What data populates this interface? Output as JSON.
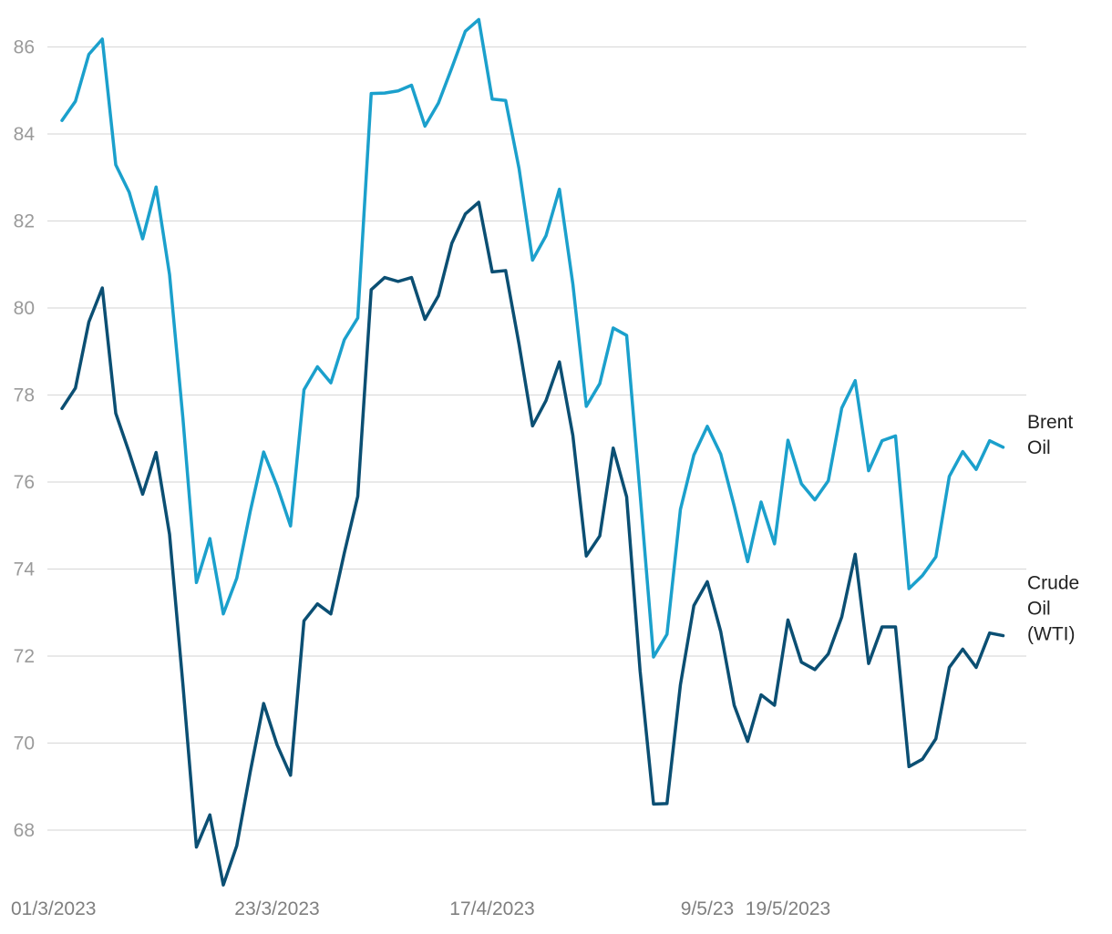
{
  "chart_data": {
    "type": "line",
    "title": "",
    "xlabel": "",
    "ylabel": "",
    "ylim": [
      67,
      87
    ],
    "yticks": [
      68,
      70,
      72,
      74,
      76,
      78,
      80,
      82,
      84,
      86
    ],
    "grid": "horizontal",
    "legend_placement": "right, at line ends",
    "x_tick_labels": [
      "01/3/2023",
      "23/3/2023",
      "17/4/2023",
      "9/5/23",
      "19/5/2023"
    ],
    "x_tick_indices": [
      0,
      16,
      32,
      48,
      54
    ],
    "series": [
      {
        "name": "Brent Oil",
        "label_lines": [
          "Brent",
          "Oil"
        ],
        "color": "#1ba0cc",
        "values": [
          84.31,
          84.75,
          85.83,
          86.18,
          83.29,
          82.66,
          81.59,
          82.78,
          80.77,
          77.45,
          73.69,
          74.7,
          72.97,
          73.79,
          75.32,
          76.69,
          75.91,
          74.99,
          78.12,
          78.65,
          78.28,
          79.27,
          79.77,
          84.93,
          84.94,
          84.99,
          85.12,
          84.18,
          84.71,
          85.52,
          86.36,
          86.63,
          84.8,
          84.77,
          83.2,
          81.1,
          81.66,
          82.73,
          80.55,
          77.74,
          78.26,
          79.54,
          79.37,
          75.73,
          71.98,
          72.5,
          75.37,
          76.62,
          77.28,
          76.64,
          75.45,
          74.17,
          75.54,
          74.58,
          76.96,
          75.96,
          75.59,
          76.03,
          77.7,
          78.33,
          76.26,
          76.95,
          77.06,
          73.55,
          73.85,
          74.28,
          76.13,
          76.7,
          76.29,
          76.95,
          76.8
        ]
      },
      {
        "name": "Crude Oil (WTI)",
        "label_lines": [
          "Crude",
          "Oil",
          "(WTI)"
        ],
        "color": "#0b4f73",
        "values": [
          77.69,
          78.16,
          79.68,
          80.46,
          77.58,
          76.68,
          75.72,
          76.68,
          74.8,
          71.33,
          67.61,
          68.35,
          66.74,
          67.64,
          69.33,
          70.91,
          69.96,
          69.26,
          72.81,
          73.2,
          72.97,
          74.37,
          75.67,
          80.42,
          80.7,
          80.61,
          80.7,
          79.74,
          80.28,
          81.49,
          82.16,
          82.43,
          80.83,
          80.86,
          79.16,
          77.29,
          77.87,
          78.76,
          77.07,
          74.3,
          74.76,
          76.78,
          75.66,
          71.66,
          68.6,
          68.61,
          71.34,
          73.16,
          73.71,
          72.56,
          70.87,
          70.04,
          71.11,
          70.87,
          72.83,
          71.86,
          71.69,
          72.05,
          72.9,
          74.34,
          71.83,
          72.67,
          72.67,
          69.46,
          69.63,
          70.1,
          71.74,
          72.16,
          71.74,
          72.53,
          72.47
        ]
      }
    ]
  }
}
